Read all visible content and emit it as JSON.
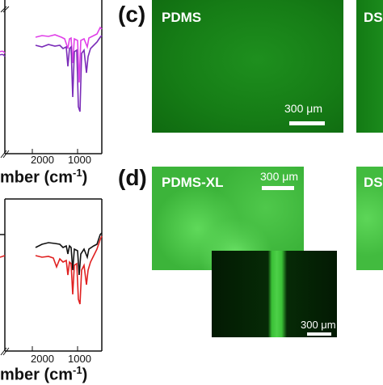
{
  "spectra": {
    "top": {
      "ticks": [
        "2000",
        "1000"
      ],
      "xlabel_main": "mber (cm",
      "xlabel_sup": "-1",
      "xlabel_close": ")",
      "line_colors": [
        "#e040e8",
        "#7a2bb8"
      ]
    },
    "bottom": {
      "ticks": [
        "2000",
        "1000"
      ],
      "xlabel_main": "mber (cm",
      "xlabel_sup": "-1",
      "xlabel_close": ")",
      "line_colors": [
        "#111111",
        "#e02020"
      ]
    }
  },
  "panel_c": {
    "letter": "(c)",
    "image1_label": "PDMS",
    "image1_scale": "300 μm",
    "image2_label": "DS"
  },
  "panel_d": {
    "letter": "(d)",
    "image1_label": "PDMS-XL",
    "image1_scale": "300 μm",
    "inset_scale": "300 μm",
    "image2_label": "DS"
  }
}
